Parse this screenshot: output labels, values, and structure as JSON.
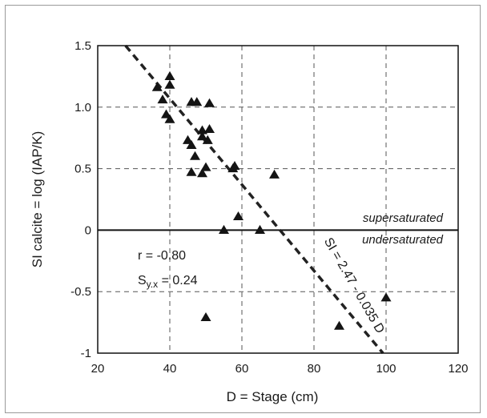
{
  "chart_data": {
    "type": "scatter",
    "title": "",
    "xlabel": "D = Stage (cm)",
    "ylabel": "SI calcite = log (IAP/K)",
    "xlim": [
      20,
      120
    ],
    "ylim": [
      -1,
      1.5
    ],
    "xticks": [
      20,
      40,
      60,
      80,
      100,
      120
    ],
    "yticks": [
      -1,
      -0.5,
      0,
      0.5,
      1.0,
      1.5
    ],
    "xtick_labels": [
      "20",
      "40",
      "60",
      "80",
      "100",
      "120"
    ],
    "ytick_labels": [
      "-1",
      "-0.5",
      "0",
      "0.5",
      "1.0",
      "1.5"
    ],
    "grid": true,
    "points": [
      {
        "x": 36.5,
        "y": 1.16
      },
      {
        "x": 38.0,
        "y": 1.06
      },
      {
        "x": 39.0,
        "y": 0.94
      },
      {
        "x": 40.0,
        "y": 1.25
      },
      {
        "x": 40.0,
        "y": 1.18
      },
      {
        "x": 40.0,
        "y": 0.9
      },
      {
        "x": 45.0,
        "y": 0.73
      },
      {
        "x": 46.0,
        "y": 1.04
      },
      {
        "x": 46.0,
        "y": 0.69
      },
      {
        "x": 46.0,
        "y": 0.47
      },
      {
        "x": 47.0,
        "y": 0.6
      },
      {
        "x": 47.5,
        "y": 1.04
      },
      {
        "x": 49.0,
        "y": 0.81
      },
      {
        "x": 49.0,
        "y": 0.76
      },
      {
        "x": 49.0,
        "y": 0.46
      },
      {
        "x": 50.0,
        "y": 0.51
      },
      {
        "x": 50.5,
        "y": 0.73
      },
      {
        "x": 51.0,
        "y": 1.03
      },
      {
        "x": 51.0,
        "y": 0.82
      },
      {
        "x": 50.0,
        "y": -0.71
      },
      {
        "x": 55.0,
        "y": 0.0
      },
      {
        "x": 57.5,
        "y": 0.5
      },
      {
        "x": 58.0,
        "y": 0.52
      },
      {
        "x": 59.0,
        "y": 0.11
      },
      {
        "x": 65.0,
        "y": 0.0
      },
      {
        "x": 69.0,
        "y": 0.45
      },
      {
        "x": 87.0,
        "y": -0.78
      },
      {
        "x": 100.0,
        "y": -0.55
      }
    ],
    "regression_line": {
      "intercept": 2.47,
      "slope": -0.035,
      "label": "SI = 2.47 - 0.035 D"
    },
    "reference_line": {
      "y": 0
    },
    "region_labels": {
      "above": "supersaturated",
      "below": "undersaturated"
    },
    "stats": {
      "r": "r = -0.80",
      "syx_main": "S",
      "syx_sub": "y.x",
      "syx_value": " = 0.24"
    }
  }
}
